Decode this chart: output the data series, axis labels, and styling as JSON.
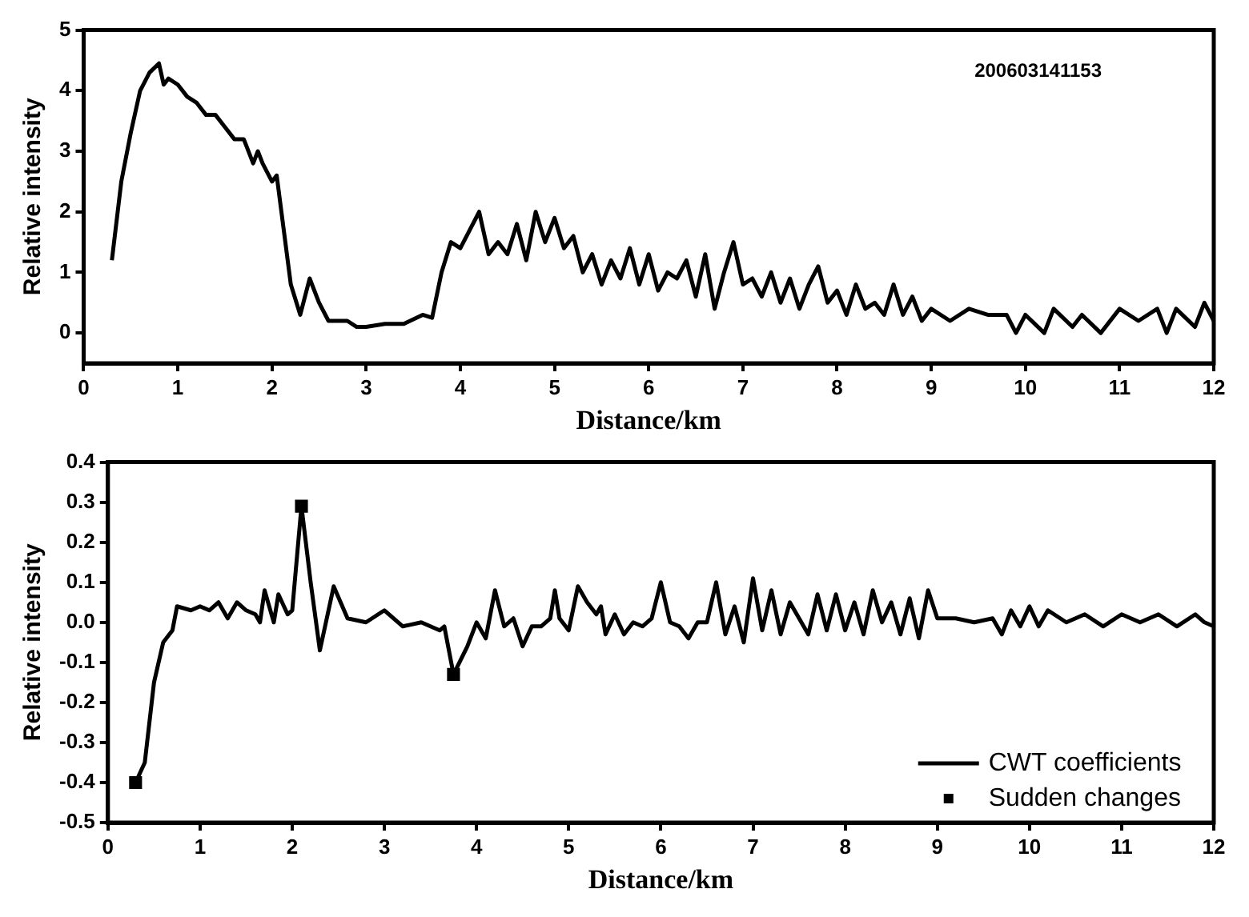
{
  "chart_data": [
    {
      "type": "line",
      "xlabel": "Distance/km",
      "ylabel": "Relative intensity",
      "annotations": [
        "200603141153"
      ],
      "xlim": [
        0,
        12
      ],
      "xticks": [
        0,
        1,
        2,
        3,
        4,
        5,
        6,
        7,
        8,
        9,
        10,
        11,
        12
      ],
      "ylim": [
        -0.5,
        5
      ],
      "yticks": [
        0,
        1,
        2,
        3,
        4,
        5
      ],
      "grid": false,
      "legend": false,
      "marker": "none",
      "line_style": "solid",
      "series": [
        {
          "color": "#000000",
          "x": [
            0.3,
            0.4,
            0.5,
            0.6,
            0.7,
            0.8,
            0.85,
            0.9,
            1.0,
            1.1,
            1.2,
            1.3,
            1.4,
            1.5,
            1.6,
            1.7,
            1.8,
            1.85,
            1.9,
            2.0,
            2.05,
            2.1,
            2.2,
            2.3,
            2.4,
            2.5,
            2.6,
            2.8,
            2.9,
            3.0,
            3.2,
            3.4,
            3.6,
            3.7,
            3.8,
            3.9,
            4.0,
            4.1,
            4.2,
            4.3,
            4.4,
            4.5,
            4.6,
            4.7,
            4.8,
            4.9,
            5.0,
            5.1,
            5.2,
            5.3,
            5.4,
            5.5,
            5.6,
            5.7,
            5.8,
            5.9,
            6.0,
            6.1,
            6.2,
            6.3,
            6.4,
            6.5,
            6.6,
            6.7,
            6.8,
            6.9,
            7.0,
            7.1,
            7.2,
            7.3,
            7.4,
            7.5,
            7.6,
            7.7,
            7.8,
            7.9,
            8.0,
            8.1,
            8.2,
            8.3,
            8.4,
            8.5,
            8.6,
            8.7,
            8.8,
            8.9,
            9.0,
            9.2,
            9.4,
            9.6,
            9.8,
            9.9,
            10.0,
            10.2,
            10.3,
            10.5,
            10.6,
            10.8,
            11.0,
            11.2,
            11.4,
            11.5,
            11.6,
            11.8,
            11.9,
            12.0
          ],
          "values": [
            1.2,
            2.5,
            3.3,
            4.0,
            4.3,
            4.45,
            4.1,
            4.2,
            4.1,
            3.9,
            3.8,
            3.6,
            3.6,
            3.4,
            3.2,
            3.2,
            2.8,
            3.0,
            2.8,
            2.5,
            2.6,
            2.0,
            0.8,
            0.3,
            0.9,
            0.5,
            0.2,
            0.2,
            0.1,
            0.1,
            0.15,
            0.15,
            0.3,
            0.25,
            1.0,
            1.5,
            1.4,
            1.7,
            2.0,
            1.3,
            1.5,
            1.3,
            1.8,
            1.2,
            2.0,
            1.5,
            1.9,
            1.4,
            1.6,
            1.0,
            1.3,
            0.8,
            1.2,
            0.9,
            1.4,
            0.8,
            1.3,
            0.7,
            1.0,
            0.9,
            1.2,
            0.6,
            1.3,
            0.4,
            1.0,
            1.5,
            0.8,
            0.9,
            0.6,
            1.0,
            0.5,
            0.9,
            0.4,
            0.8,
            1.1,
            0.5,
            0.7,
            0.3,
            0.8,
            0.4,
            0.5,
            0.3,
            0.8,
            0.3,
            0.6,
            0.2,
            0.4,
            0.2,
            0.4,
            0.3,
            0.3,
            0.0,
            0.3,
            0.0,
            0.4,
            0.1,
            0.3,
            0.0,
            0.4,
            0.2,
            0.4,
            0.0,
            0.4,
            0.1,
            0.5,
            0.2
          ]
        }
      ]
    },
    {
      "type": "line",
      "xlabel": "Distance/km",
      "ylabel": "Relative intensity",
      "xlim": [
        0,
        12
      ],
      "xticks": [
        0,
        1,
        2,
        3,
        4,
        5,
        6,
        7,
        8,
        9,
        10,
        11,
        12
      ],
      "ylim": [
        -0.5,
        0.4
      ],
      "yticks": [
        -0.5,
        -0.4,
        -0.3,
        -0.2,
        -0.1,
        {
          "value": 0,
          "label": "0.0"
        },
        0.1,
        0.2,
        0.3,
        0.4
      ],
      "grid": false,
      "legend": "bottom right",
      "line_style": "solid",
      "series": [
        {
          "name": "CWT coefficients",
          "type": "line",
          "marker": "none",
          "color": "#000000",
          "x": [
            0.3,
            0.4,
            0.5,
            0.6,
            0.7,
            0.75,
            0.9,
            1.0,
            1.1,
            1.2,
            1.3,
            1.4,
            1.5,
            1.6,
            1.65,
            1.7,
            1.8,
            1.85,
            1.95,
            2.0,
            2.1,
            2.2,
            2.3,
            2.45,
            2.6,
            2.8,
            3.0,
            3.2,
            3.4,
            3.6,
            3.65,
            3.75,
            3.9,
            4.0,
            4.1,
            4.2,
            4.3,
            4.4,
            4.5,
            4.6,
            4.7,
            4.8,
            4.85,
            4.9,
            5.0,
            5.1,
            5.2,
            5.3,
            5.35,
            5.4,
            5.5,
            5.6,
            5.7,
            5.8,
            5.9,
            6.0,
            6.1,
            6.2,
            6.3,
            6.4,
            6.5,
            6.6,
            6.7,
            6.8,
            6.9,
            7.0,
            7.1,
            7.2,
            7.3,
            7.4,
            7.5,
            7.6,
            7.7,
            7.8,
            7.9,
            8.0,
            8.1,
            8.2,
            8.3,
            8.4,
            8.5,
            8.6,
            8.7,
            8.8,
            8.9,
            9.0,
            9.2,
            9.4,
            9.6,
            9.7,
            9.8,
            9.9,
            10.0,
            10.1,
            10.2,
            10.4,
            10.6,
            10.8,
            11.0,
            11.2,
            11.4,
            11.6,
            11.8,
            11.9,
            12.0
          ],
          "values": [
            -0.4,
            -0.35,
            -0.15,
            -0.05,
            -0.02,
            0.04,
            0.03,
            0.04,
            0.03,
            0.05,
            0.01,
            0.05,
            0.03,
            0.02,
            0.0,
            0.08,
            0.0,
            0.07,
            0.02,
            0.03,
            0.29,
            0.1,
            -0.07,
            0.09,
            0.01,
            0.0,
            0.03,
            -0.01,
            0.0,
            -0.02,
            -0.01,
            -0.13,
            -0.06,
            0.0,
            -0.04,
            0.08,
            -0.01,
            0.01,
            -0.06,
            -0.01,
            -0.01,
            0.01,
            0.08,
            0.01,
            -0.02,
            0.09,
            0.05,
            0.02,
            0.04,
            -0.03,
            0.02,
            -0.03,
            0.0,
            -0.01,
            0.01,
            0.1,
            0.0,
            -0.01,
            -0.04,
            0.0,
            0.0,
            0.1,
            -0.03,
            0.04,
            -0.05,
            0.11,
            -0.02,
            0.08,
            -0.03,
            0.05,
            0.01,
            -0.03,
            0.07,
            -0.02,
            0.07,
            -0.02,
            0.05,
            -0.03,
            0.08,
            0.0,
            0.05,
            -0.03,
            0.06,
            -0.04,
            0.08,
            0.01,
            0.01,
            0.0,
            0.01,
            -0.03,
            0.03,
            -0.01,
            0.04,
            -0.01,
            0.03,
            0.0,
            0.02,
            -0.01,
            0.02,
            0.0,
            0.02,
            -0.01,
            0.02,
            0.0,
            -0.01
          ]
        },
        {
          "name": "Sudden changes",
          "type": "scatter",
          "marker": "square",
          "color": "#000000",
          "x": [
            0.3,
            2.1,
            3.75
          ],
          "values": [
            -0.4,
            0.29,
            -0.13
          ]
        }
      ]
    }
  ]
}
